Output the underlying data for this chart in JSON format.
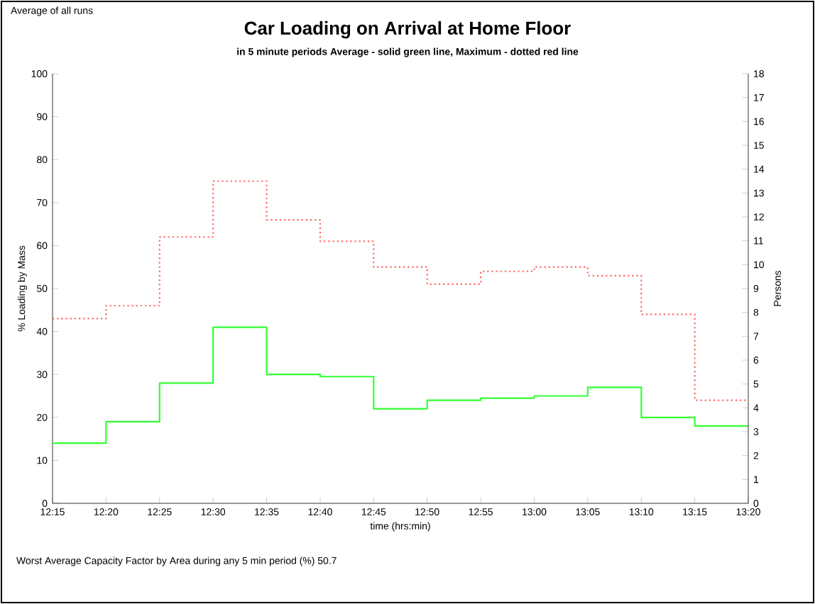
{
  "chart_data": {
    "type": "step",
    "title": "Car Loading on Arrival at Home Floor",
    "subtitle": "in 5 minute periods  Average - solid green line, Maximum -  dotted red line",
    "xlabel": "time (hrs:min)",
    "ylabel": "% Loading by Mass",
    "y2label": "Persons",
    "annotations": [
      "Average of all runs",
      "Worst Average Capacity Factor by Area during any 5 min period (%)   50.7"
    ],
    "x": [
      12.25,
      12.3333,
      12.4167,
      12.5,
      12.5833,
      12.6667,
      12.75,
      12.8333,
      12.9167,
      13.0,
      13.0833,
      13.1667,
      13.25,
      13.3333
    ],
    "series": [
      {
        "color": "#ff6666",
        "line_style": "dotted",
        "values": [
          43,
          46,
          62,
          75,
          66,
          61,
          55,
          51,
          54,
          55,
          53,
          44,
          24,
          24
        ]
      },
      {
        "color": "#33ff33",
        "line_style": "solid",
        "values": [
          14,
          19,
          28,
          41,
          30,
          29.5,
          22,
          24,
          24.5,
          25,
          27,
          20,
          18,
          18
        ]
      }
    ],
    "xlim": [
      12.25,
      13.3333
    ],
    "xticks": [
      {
        "value": 12.25,
        "label": "12:15"
      },
      {
        "value": 12.3333,
        "label": "12:20"
      },
      {
        "value": 12.4167,
        "label": "12:25"
      },
      {
        "value": 12.5,
        "label": "12:30"
      },
      {
        "value": 12.5833,
        "label": "12:35"
      },
      {
        "value": 12.6667,
        "label": "12:40"
      },
      {
        "value": 12.75,
        "label": "12:45"
      },
      {
        "value": 12.8333,
        "label": "12:50"
      },
      {
        "value": 12.9167,
        "label": "12:55"
      },
      {
        "value": 13.0,
        "label": "13:00"
      },
      {
        "value": 13.0833,
        "label": "13:05"
      },
      {
        "value": 13.1667,
        "label": "13:10"
      },
      {
        "value": 13.25,
        "label": "13:15"
      },
      {
        "value": 13.3333,
        "label": "13:20"
      }
    ],
    "ylim": [
      0,
      100
    ],
    "yticks": [
      0,
      10,
      20,
      30,
      40,
      50,
      60,
      70,
      80,
      90,
      100
    ],
    "y2lim": [
      0,
      18
    ],
    "y2ticks": [
      0,
      1,
      2,
      3,
      4,
      5,
      6,
      7,
      8,
      9,
      10,
      11,
      12,
      13,
      14,
      15,
      16,
      17,
      18
    ]
  }
}
